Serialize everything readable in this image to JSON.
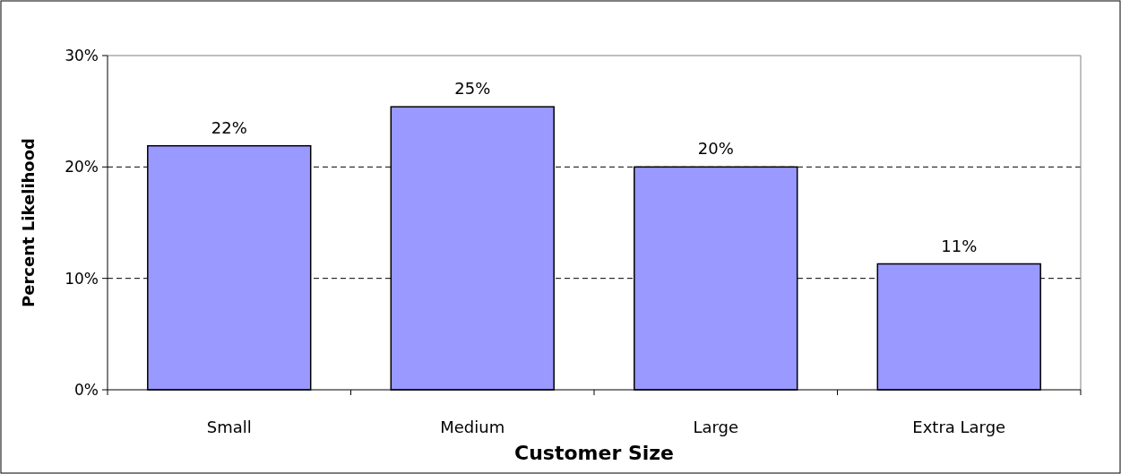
{
  "chart_data": {
    "type": "bar",
    "xlabel": "Customer Size",
    "ylabel": "Percent Likelihood",
    "categories": [
      "Small",
      "Medium",
      "Large",
      "Extra Large"
    ],
    "values": [
      21.9,
      25.4,
      20.0,
      11.3
    ],
    "value_labels": [
      "22%",
      "25%",
      "20%",
      "11%"
    ],
    "color": "#9999ff",
    "ylim": [
      0,
      30
    ],
    "yticks": [
      {
        "value": 0,
        "label": "0%"
      },
      {
        "value": 10,
        "label": "10%"
      },
      {
        "value": 20,
        "label": "20%"
      },
      {
        "value": 30,
        "label": "30%"
      }
    ],
    "grid": "y"
  }
}
